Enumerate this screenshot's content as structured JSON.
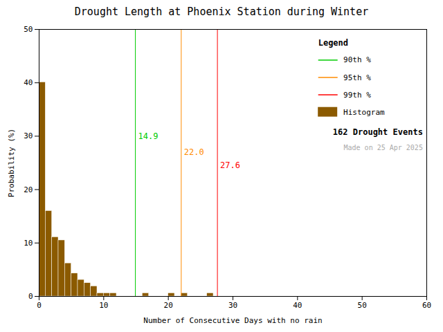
{
  "chart_data": {
    "type": "histogram",
    "title": "Drought Length at Phoenix Station during Winter",
    "xlabel": "Number of Consecutive Days with no rain",
    "ylabel": "Probability (%)",
    "name": "Histogram",
    "color": "#8B5A00",
    "bins": [
      0,
      1,
      2,
      3,
      4,
      5,
      6,
      7,
      8,
      9,
      10,
      11,
      12,
      13,
      14,
      15,
      16,
      17,
      18,
      19,
      20,
      21,
      22,
      23,
      24,
      25,
      26,
      27,
      28,
      29,
      30,
      31,
      32,
      33,
      34,
      35,
      36,
      37,
      38,
      39,
      40,
      41,
      42,
      43,
      44,
      45,
      46,
      47,
      48,
      49,
      50,
      51,
      52,
      53,
      54,
      55,
      56,
      57,
      58,
      59,
      60
    ],
    "values": [
      40.1,
      16.0,
      11.1,
      10.5,
      6.2,
      4.3,
      3.1,
      2.5,
      1.9,
      0.6,
      0.6,
      0.6,
      0.0,
      0.0,
      0.0,
      0.0,
      0.6,
      0.0,
      0.0,
      0.0,
      0.6,
      0.0,
      0.6,
      0.0,
      0.0,
      0.0,
      0.6,
      0.0,
      0.0,
      0.0,
      0.0,
      0.0,
      0.0,
      0.0,
      0.0,
      0.0,
      0.0,
      0.0,
      0.0,
      0.0,
      0.0,
      0.0,
      0.0,
      0.0,
      0.0,
      0.0,
      0.0,
      0.0,
      0.0,
      0.0,
      0.0,
      0.0,
      0.0,
      0.0,
      0.0,
      0.0,
      0.0,
      0.0,
      0.0,
      0.0
    ],
    "vlines": [
      {
        "name": "90th %",
        "value": 14.9,
        "label": "14.9",
        "color": "#00CC00"
      },
      {
        "name": "95th %",
        "value": 22.0,
        "label": "22.0",
        "color": "#FF8C00"
      },
      {
        "name": "99th %",
        "value": 27.6,
        "label": "27.6",
        "color": "#FF0000"
      }
    ],
    "legend": "upper right",
    "legend_title": "Legend",
    "annotations": [
      {
        "text": "162 Drought Events"
      },
      {
        "text": "Made on 25 Apr 2025",
        "color": "#AAAAAA"
      }
    ],
    "xlim": [
      0,
      60
    ],
    "ylim": [
      0,
      50
    ],
    "xticks": [
      0,
      10,
      20,
      30,
      40,
      50,
      60
    ],
    "yticks": [
      0,
      10,
      20,
      30,
      40,
      50
    ],
    "grid": false
  }
}
